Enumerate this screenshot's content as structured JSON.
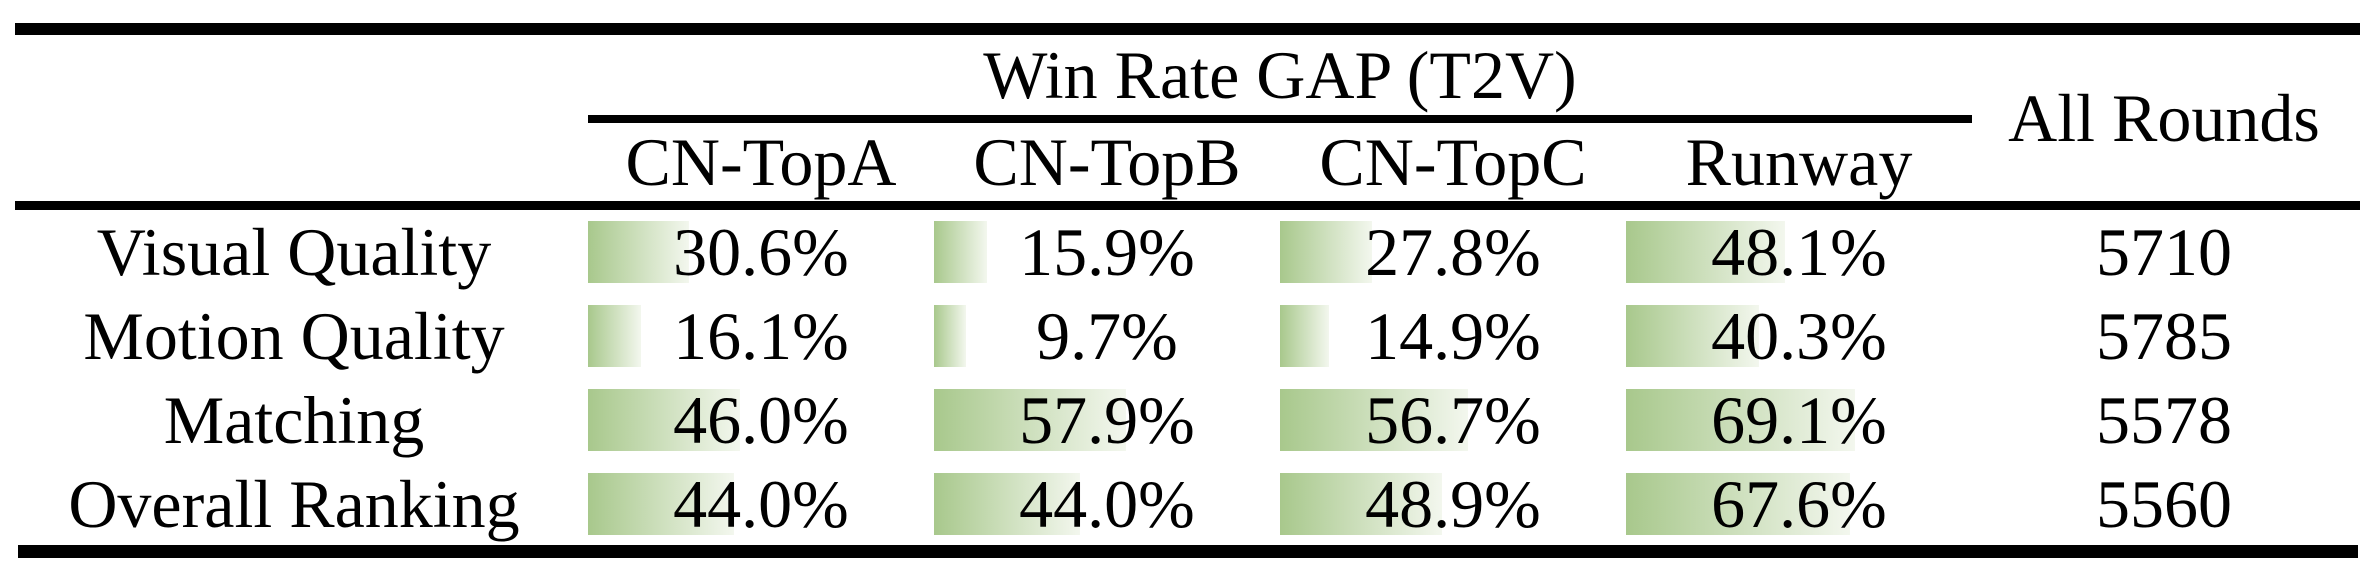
{
  "table": {
    "group_title": "Win Rate GAP (T2V)",
    "all_rounds_label": "All Rounds",
    "columns": [
      "CN-TopA",
      "CN-TopB",
      "CN-TopC",
      "Runway"
    ],
    "rows": [
      {
        "label": "Visual Quality",
        "values": [
          {
            "display": "30.6%",
            "value": 30.6
          },
          {
            "display": "15.9%",
            "value": 15.9
          },
          {
            "display": "27.8%",
            "value": 27.8
          },
          {
            "display": "48.1%",
            "value": 48.1
          }
        ],
        "all_rounds": "5710"
      },
      {
        "label": "Motion Quality",
        "values": [
          {
            "display": "16.1%",
            "value": 16.1
          },
          {
            "display": "9.7%",
            "value": 9.7
          },
          {
            "display": "14.9%",
            "value": 14.9
          },
          {
            "display": "40.3%",
            "value": 40.3
          }
        ],
        "all_rounds": "5785"
      },
      {
        "label": "Matching",
        "values": [
          {
            "display": "46.0%",
            "value": 46.0
          },
          {
            "display": "57.9%",
            "value": 57.9
          },
          {
            "display": "56.7%",
            "value": 56.7
          },
          {
            "display": "69.1%",
            "value": 69.1
          }
        ],
        "all_rounds": "5578"
      },
      {
        "label": "Overall Ranking",
        "values": [
          {
            "display": "44.0%",
            "value": 44.0
          },
          {
            "display": "44.0%",
            "value": 44.0
          },
          {
            "display": "48.9%",
            "value": 48.9
          },
          {
            "display": "67.6%",
            "value": 67.6
          }
        ],
        "all_rounds": "5560"
      }
    ],
    "bar_colors": {
      "start": "#a8c88c",
      "end": "#f3f7ee"
    },
    "rule_color": "#000000",
    "text_color": "#000000"
  }
}
